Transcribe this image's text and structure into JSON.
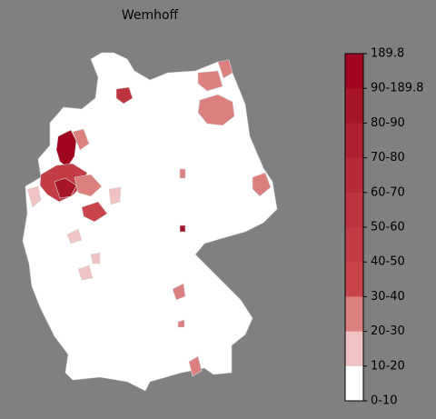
{
  "title": "Wemhoff",
  "colorbar": {
    "labels": [
      "189.8",
      "90-189.8",
      "80-90",
      "70-80",
      "60-70",
      "50-60",
      "40-50",
      "30-40",
      "20-30",
      "10-20",
      "0-10"
    ],
    "colors": [
      "#a0061f",
      "#a81429",
      "#b01f31",
      "#b82a39",
      "#be3340",
      "#c33c45",
      "#c8444a",
      "#dc7f7f",
      "#f0c2c2",
      "#ffffff"
    ]
  }
}
